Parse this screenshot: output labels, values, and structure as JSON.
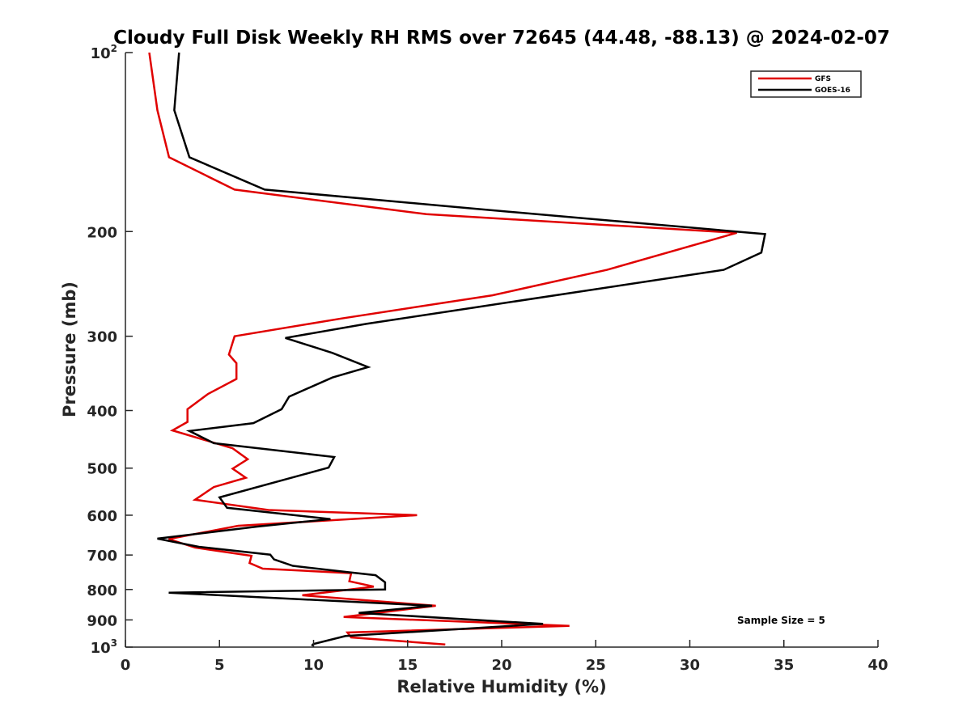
{
  "chart_data": {
    "type": "line",
    "title": "Cloudy Full Disk Weekly RH RMS over 72645 (44.48, -88.13) @ 2024-02-07",
    "xlabel": "Relative Humidity (%)",
    "ylabel": "Pressure (mb)",
    "xlim": [
      0,
      40
    ],
    "ylim": [
      100,
      1000
    ],
    "y_scale": "log",
    "y_reversed": true,
    "grid": false,
    "legend_position": "top-right",
    "x_ticks": [
      {
        "value": 0,
        "label": "0"
      },
      {
        "value": 5,
        "label": "5"
      },
      {
        "value": 10,
        "label": "10"
      },
      {
        "value": 15,
        "label": "15"
      },
      {
        "value": 20,
        "label": "20"
      },
      {
        "value": 25,
        "label": "25"
      },
      {
        "value": 30,
        "label": "30"
      },
      {
        "value": 35,
        "label": "35"
      },
      {
        "value": 40,
        "label": "40"
      }
    ],
    "y_ticks": [
      {
        "value": 100,
        "label": "10",
        "exp": "2"
      },
      {
        "value": 200,
        "label": "200",
        "exp": ""
      },
      {
        "value": 300,
        "label": "300",
        "exp": ""
      },
      {
        "value": 400,
        "label": "400",
        "exp": ""
      },
      {
        "value": 500,
        "label": "500",
        "exp": ""
      },
      {
        "value": 600,
        "label": "600",
        "exp": ""
      },
      {
        "value": 700,
        "label": "700",
        "exp": ""
      },
      {
        "value": 800,
        "label": "800",
        "exp": ""
      },
      {
        "value": 900,
        "label": "900",
        "exp": ""
      },
      {
        "value": 1000,
        "label": "10",
        "exp": "3"
      }
    ],
    "annotation": "Sample Size = 5",
    "series": [
      {
        "name": "GFS",
        "color": "#e00000",
        "points": [
          [
            1.27,
            100
          ],
          [
            1.7,
            125
          ],
          [
            2.32,
            150
          ],
          [
            5.8,
            170
          ],
          [
            16.0,
            187
          ],
          [
            32.5,
            201
          ],
          [
            25.6,
            232
          ],
          [
            19.5,
            256
          ],
          [
            11.5,
            280
          ],
          [
            5.8,
            300
          ],
          [
            5.5,
            322
          ],
          [
            5.9,
            333
          ],
          [
            5.9,
            354
          ],
          [
            4.4,
            375
          ],
          [
            3.3,
            398
          ],
          [
            3.3,
            418
          ],
          [
            2.5,
            432
          ],
          [
            5.7,
            463
          ],
          [
            6.5,
            483
          ],
          [
            5.7,
            501
          ],
          [
            6.4,
            519
          ],
          [
            4.7,
            538
          ],
          [
            3.7,
            565
          ],
          [
            7.6,
            588
          ],
          [
            15.5,
            600
          ],
          [
            6.0,
            625
          ],
          [
            2.3,
            658
          ],
          [
            3.7,
            680
          ],
          [
            6.7,
            702
          ],
          [
            6.6,
            722
          ],
          [
            7.3,
            738
          ],
          [
            12.0,
            751
          ],
          [
            11.9,
            775
          ],
          [
            13.2,
            791
          ],
          [
            9.4,
            818
          ],
          [
            16.5,
            852
          ],
          [
            11.6,
            890
          ],
          [
            23.6,
            921
          ],
          [
            11.8,
            945
          ],
          [
            12.0,
            963
          ],
          [
            17.0,
            990
          ]
        ]
      },
      {
        "name": "GOES-16",
        "color": "#000000",
        "points": [
          [
            2.85,
            100
          ],
          [
            2.6,
            125
          ],
          [
            3.4,
            150
          ],
          [
            7.4,
            170
          ],
          [
            18.5,
            183
          ],
          [
            34.0,
            202
          ],
          [
            33.8,
            217
          ],
          [
            31.8,
            232
          ],
          [
            12.8,
            286
          ],
          [
            8.5,
            302
          ],
          [
            11.0,
            320
          ],
          [
            12.9,
            338
          ],
          [
            11.0,
            352
          ],
          [
            8.7,
            379
          ],
          [
            8.3,
            398
          ],
          [
            6.8,
            420
          ],
          [
            3.4,
            433
          ],
          [
            4.7,
            454
          ],
          [
            11.1,
            479
          ],
          [
            10.8,
            499
          ],
          [
            9.5,
            512
          ],
          [
            5.0,
            560
          ],
          [
            5.4,
            583
          ],
          [
            10.9,
            609
          ],
          [
            7.0,
            627
          ],
          [
            1.7,
            657
          ],
          [
            3.9,
            678
          ],
          [
            7.7,
            699
          ],
          [
            7.9,
            712
          ],
          [
            8.9,
            730
          ],
          [
            11.8,
            748
          ],
          [
            13.3,
            757
          ],
          [
            13.8,
            778
          ],
          [
            13.8,
            800
          ],
          [
            2.3,
            810
          ],
          [
            16.3,
            852
          ],
          [
            12.4,
            876
          ],
          [
            22.2,
            914
          ],
          [
            11.7,
            958
          ],
          [
            10.0,
            988
          ],
          [
            9.9,
            995
          ]
        ]
      }
    ]
  }
}
